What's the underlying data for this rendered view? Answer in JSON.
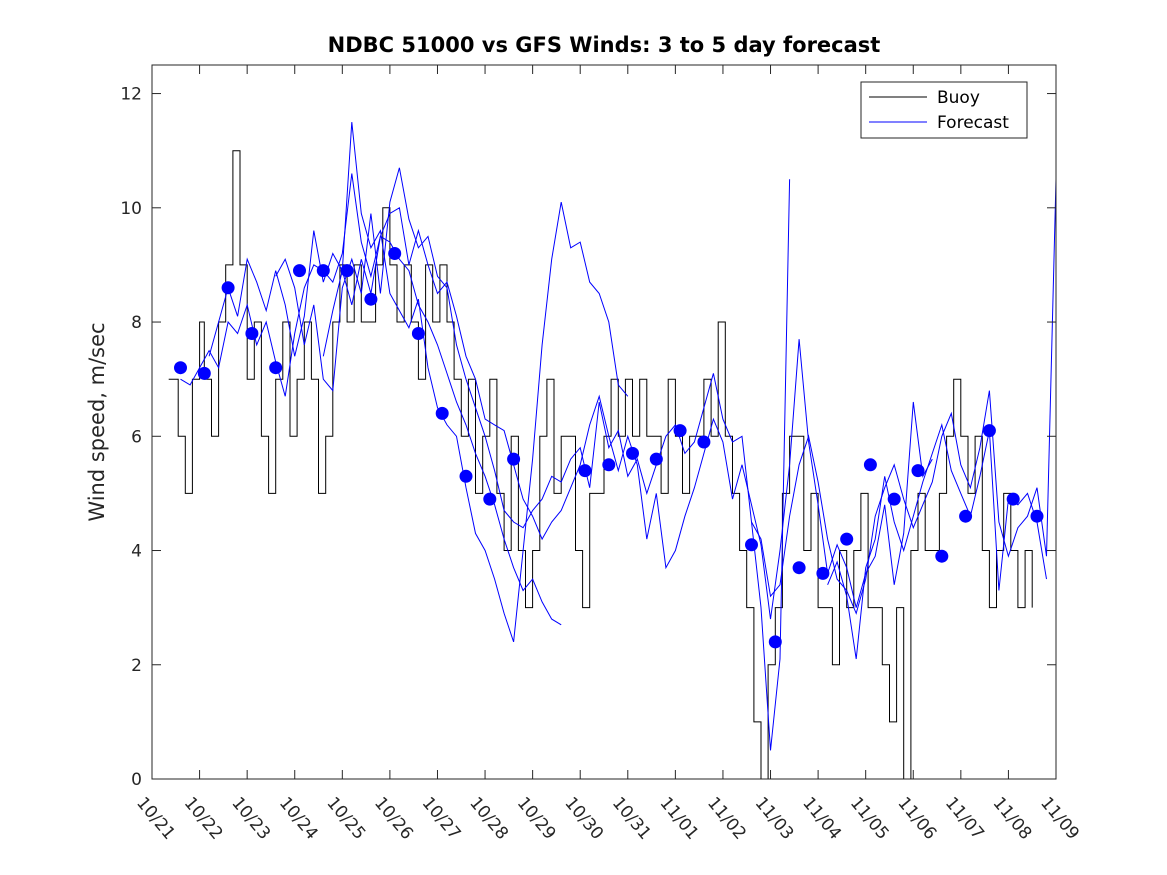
{
  "chart_data": {
    "type": "line",
    "title": "NDBC 51000 vs GFS Winds: 3 to 5 day forecast",
    "xlabel": "",
    "ylabel": "Wind speed, m/sec",
    "xlim": [
      0,
      19
    ],
    "ylim": [
      0,
      12.5
    ],
    "yticks": [
      0,
      2,
      4,
      6,
      8,
      10,
      12
    ],
    "xtick_labels": [
      "10/21",
      "10/22",
      "10/23",
      "10/24",
      "10/25",
      "10/26",
      "10/27",
      "10/28",
      "10/29",
      "10/30",
      "10/31",
      "11/01",
      "11/02",
      "11/03",
      "11/04",
      "11/05",
      "11/06",
      "11/07",
      "11/08",
      "11/09"
    ],
    "legend": {
      "location": "top-right",
      "entries": [
        "Buoy",
        "Forecast"
      ]
    },
    "colors": {
      "buoy": "#000000",
      "forecast": "#0000ff",
      "markers": "#0000ff",
      "axes": "#262626"
    },
    "buoy": {
      "name": "Buoy",
      "x": [
        0.35,
        0.55,
        0.7,
        0.85,
        1.0,
        1.1,
        1.25,
        1.4,
        1.55,
        1.7,
        1.85,
        2.0,
        2.15,
        2.3,
        2.45,
        2.6,
        2.75,
        2.9,
        3.05,
        3.2,
        3.35,
        3.5,
        3.65,
        3.8,
        3.95,
        4.1,
        4.25,
        4.4,
        4.55,
        4.7,
        4.85,
        5.0,
        5.15,
        5.3,
        5.45,
        5.6,
        5.75,
        5.9,
        6.05,
        6.2,
        6.35,
        6.5,
        6.65,
        6.8,
        6.95,
        7.1,
        7.25,
        7.4,
        7.55,
        7.7,
        7.85,
        8.0,
        8.15,
        8.3,
        8.45,
        8.6,
        8.75,
        8.9,
        9.05,
        9.2,
        9.35,
        9.5,
        9.65,
        9.8,
        9.95,
        10.1,
        10.25,
        10.4,
        10.55,
        10.7,
        10.85,
        11.0,
        11.15,
        11.3,
        11.45,
        11.6,
        11.75,
        11.9,
        12.05,
        12.2,
        12.35,
        12.5,
        12.65,
        12.8,
        12.95,
        13.1,
        13.25,
        13.4,
        13.55,
        13.7,
        13.85,
        14.0,
        14.15,
        14.3,
        14.45,
        14.6,
        14.75,
        14.9,
        15.05,
        15.2,
        15.35,
        15.5,
        15.65,
        15.8,
        15.95,
        16.1,
        16.25,
        16.4,
        16.55,
        16.7,
        16.85,
        17.0,
        17.15,
        17.3,
        17.45,
        17.6,
        17.75,
        17.9,
        18.05,
        18.2,
        18.35,
        18.5
      ],
      "values": [
        7,
        6,
        5,
        7,
        8,
        7,
        6,
        8,
        9,
        11,
        9,
        7,
        8,
        6,
        5,
        7,
        8,
        6,
        7,
        8,
        7,
        5,
        6,
        8,
        9,
        8,
        9,
        8,
        8,
        9,
        10,
        9,
        8,
        9,
        8,
        7,
        9,
        8,
        9,
        8,
        7,
        6,
        7,
        5,
        6,
        7,
        5,
        4,
        6,
        4,
        3,
        4,
        6,
        7,
        5,
        6,
        6,
        4,
        3,
        5,
        5,
        6,
        7,
        6,
        7,
        6,
        7,
        6,
        6,
        5,
        7,
        6,
        5,
        6,
        6,
        7,
        6,
        8,
        6,
        5,
        4,
        3,
        1,
        0,
        2,
        3,
        5,
        6,
        6,
        4,
        5,
        3,
        3,
        2,
        4,
        3,
        4,
        5,
        3,
        3,
        2,
        1,
        3,
        0,
        4,
        5,
        4,
        4,
        5,
        6,
        7,
        6,
        5,
        6,
        4,
        3,
        4,
        5,
        4,
        3,
        4,
        3
      ]
    },
    "forecast_series": [
      {
        "name": "Forecast",
        "x": [
          0.6,
          0.8,
          1.0,
          1.2,
          1.4,
          1.6,
          1.8,
          2.0,
          2.2,
          2.4,
          2.6,
          2.8,
          3.0,
          3.2,
          3.4,
          3.6,
          3.8,
          4.0,
          4.2,
          4.4,
          4.6,
          4.8,
          5.0,
          5.2,
          5.4,
          5.6,
          5.8,
          6.0,
          6.2,
          6.4,
          6.6,
          6.8,
          7.0,
          7.2,
          7.4,
          7.6,
          7.8,
          8.0,
          8.2,
          8.4,
          8.6
        ],
        "values": [
          7.0,
          6.9,
          7.2,
          7.5,
          7.2,
          8.0,
          7.8,
          8.3,
          7.6,
          8.0,
          7.3,
          6.7,
          7.8,
          8.6,
          9.0,
          8.9,
          8.7,
          9.2,
          10.6,
          9.4,
          8.8,
          9.5,
          9.4,
          9.1,
          8.9,
          8.3,
          8.0,
          7.6,
          7.1,
          6.6,
          6.2,
          5.7,
          5.3,
          4.8,
          4.2,
          3.7,
          3.3,
          3.5,
          3.1,
          2.8,
          2.7
        ]
      },
      {
        "name": "Forecast",
        "x": [
          1.2,
          1.4,
          1.6,
          1.8,
          2.0,
          2.2,
          2.4,
          2.6,
          2.8,
          3.0,
          3.2,
          3.4,
          3.6,
          3.8,
          4.0,
          4.2,
          4.4,
          4.6,
          4.8,
          5.0,
          5.2,
          5.4,
          5.6,
          5.8,
          6.0,
          6.2,
          6.4,
          6.6,
          6.8,
          7.0,
          7.2,
          7.4,
          7.6,
          7.8,
          8.0,
          8.2,
          8.4,
          8.6,
          8.8,
          9.0,
          9.2,
          9.4,
          9.6,
          9.8,
          10.0
        ],
        "values": [
          7.4,
          8.0,
          8.6,
          8.1,
          9.1,
          8.7,
          8.2,
          8.9,
          8.3,
          7.4,
          8.1,
          9.6,
          8.7,
          9.2,
          8.9,
          11.5,
          9.9,
          9.3,
          9.6,
          8.5,
          8.2,
          7.9,
          8.4,
          7.2,
          6.5,
          6.2,
          6.0,
          5.1,
          4.3,
          4.0,
          3.5,
          2.9,
          2.4,
          4.0,
          5.6,
          7.6,
          9.1,
          10.1,
          9.3,
          9.4,
          8.7,
          8.5,
          8.0,
          6.9,
          6.7
        ]
      },
      {
        "name": "Forecast",
        "x": [
          2.6,
          2.8,
          3.0,
          3.2,
          3.4,
          3.6,
          3.8,
          4.0,
          4.2,
          4.4,
          4.6,
          4.8,
          5.0,
          5.2,
          5.4,
          5.6,
          5.8,
          6.0,
          6.2,
          6.4,
          6.6,
          6.8,
          7.0,
          7.2,
          7.4,
          7.6,
          7.8,
          8.0,
          8.2,
          8.4,
          8.6,
          8.8,
          9.0,
          9.2,
          9.4,
          9.6,
          9.8,
          10.0,
          10.2,
          10.4,
          10.6,
          10.8,
          11.0,
          11.2,
          11.4,
          11.6,
          11.8,
          12.0,
          12.2,
          12.4,
          12.6,
          12.8,
          13.0,
          13.2,
          13.4
        ],
        "values": [
          8.8,
          9.1,
          8.6,
          7.6,
          8.3,
          7.0,
          6.8,
          8.6,
          9.1,
          8.5,
          9.9,
          8.5,
          10.1,
          10.7,
          9.8,
          9.3,
          9.5,
          8.8,
          8.6,
          7.6,
          7.0,
          6.5,
          6.0,
          5.4,
          4.7,
          4.5,
          4.4,
          4.7,
          4.9,
          5.3,
          5.2,
          5.6,
          5.8,
          5.1,
          6.6,
          5.8,
          6.1,
          5.3,
          5.6,
          5.0,
          5.5,
          6.0,
          6.2,
          5.7,
          5.9,
          6.5,
          7.1,
          6.3,
          5.9,
          6.0,
          4.5,
          3.0,
          0.5,
          2.1,
          10.5
        ]
      },
      {
        "name": "Forecast",
        "x": [
          3.6,
          3.8,
          4.0,
          4.2,
          4.4,
          4.6,
          4.8,
          5.0,
          5.2,
          5.4,
          5.6,
          5.8,
          6.0,
          6.2,
          6.4,
          6.6,
          6.8,
          7.0,
          7.2,
          7.4,
          7.6,
          7.8,
          8.0,
          8.2,
          8.4,
          8.6,
          8.8,
          9.0,
          9.2,
          9.4,
          9.6,
          9.8,
          10.0,
          10.2,
          10.4,
          10.6,
          10.8,
          11.0,
          11.2,
          11.4,
          11.6,
          11.8,
          12.0,
          12.2,
          12.4,
          12.6,
          12.8,
          13.0,
          13.2,
          13.4,
          13.6,
          13.8,
          14.0,
          14.2,
          14.4,
          14.6,
          14.8,
          15.0,
          15.2,
          15.4,
          15.6,
          15.8,
          16.0,
          16.2,
          16.4
        ],
        "values": [
          7.4,
          8.2,
          8.9,
          8.3,
          9.1,
          8.5,
          9.5,
          9.9,
          10.0,
          9.0,
          9.6,
          9.0,
          8.5,
          8.7,
          8.1,
          7.4,
          7.0,
          6.3,
          6.2,
          6.1,
          5.5,
          4.9,
          4.6,
          4.2,
          4.5,
          4.7,
          5.1,
          5.5,
          6.2,
          6.7,
          6.0,
          5.4,
          6.0,
          5.5,
          4.2,
          5.0,
          3.7,
          4.0,
          4.6,
          5.1,
          5.7,
          6.3,
          5.9,
          4.9,
          5.5,
          4.8,
          4.1,
          2.8,
          4.0,
          5.5,
          7.7,
          5.9,
          4.8,
          3.6,
          4.1,
          3.7,
          3.0,
          3.6,
          3.9,
          4.8,
          3.4,
          4.3,
          6.6,
          5.3,
          5.6
        ]
      },
      {
        "name": "Forecast",
        "x": [
          12.6,
          12.8,
          13.0,
          13.2,
          13.4,
          13.6,
          13.8,
          14.0,
          14.2,
          14.4,
          14.6,
          14.8,
          15.0,
          15.2,
          15.4,
          15.6,
          15.8,
          16.0,
          16.2,
          16.4,
          16.6,
          16.8,
          17.0,
          17.2,
          17.4,
          17.6,
          17.8,
          18.0,
          18.2,
          18.4,
          18.6,
          18.8,
          19.0
        ],
        "values": [
          4.5,
          4.2,
          3.2,
          3.4,
          4.6,
          5.5,
          6.0,
          5.2,
          4.2,
          3.5,
          3.3,
          2.9,
          3.5,
          4.6,
          5.1,
          5.5,
          4.9,
          4.4,
          4.8,
          5.2,
          6.0,
          6.4,
          5.5,
          5.1,
          5.8,
          6.8,
          4.5,
          3.9,
          4.4,
          4.6,
          5.1,
          3.9,
          10.5
        ]
      },
      {
        "name": "Forecast",
        "x": [
          14.2,
          14.4,
          14.6,
          14.8,
          15.0,
          15.2,
          15.4,
          15.6,
          15.8,
          16.0,
          16.2,
          16.4,
          16.6,
          16.8,
          17.0,
          17.2,
          17.4,
          17.6,
          17.8,
          18.0,
          18.2,
          18.4,
          18.6,
          18.8
        ],
        "values": [
          3.4,
          3.8,
          3.2,
          2.1,
          3.7,
          4.2,
          5.3,
          4.5,
          4.0,
          4.6,
          5.2,
          5.7,
          6.2,
          5.4,
          5.0,
          4.6,
          5.3,
          6.1,
          3.3,
          4.9,
          4.8,
          5.0,
          4.5,
          3.5
        ]
      }
    ],
    "forecast_points": {
      "x": [
        0.6,
        1.1,
        1.6,
        2.1,
        2.6,
        3.1,
        3.6,
        4.1,
        4.6,
        5.1,
        5.6,
        6.1,
        6.6,
        7.1,
        7.6,
        9.1,
        9.6,
        10.1,
        10.6,
        11.1,
        11.6,
        12.6,
        13.1,
        13.6,
        14.1,
        14.6,
        15.1,
        15.6,
        16.1,
        16.6,
        17.1,
        17.6,
        18.1,
        18.6
      ],
      "values": [
        7.2,
        7.1,
        8.6,
        7.8,
        7.2,
        8.9,
        8.9,
        8.9,
        8.4,
        9.2,
        7.8,
        6.4,
        5.3,
        4.9,
        5.6,
        5.4,
        5.5,
        5.7,
        5.6,
        6.1,
        5.9,
        4.1,
        2.4,
        3.7,
        3.6,
        4.2,
        5.5,
        4.9,
        5.4,
        3.9,
        4.6,
        6.1,
        4.9,
        4.6
      ]
    }
  }
}
